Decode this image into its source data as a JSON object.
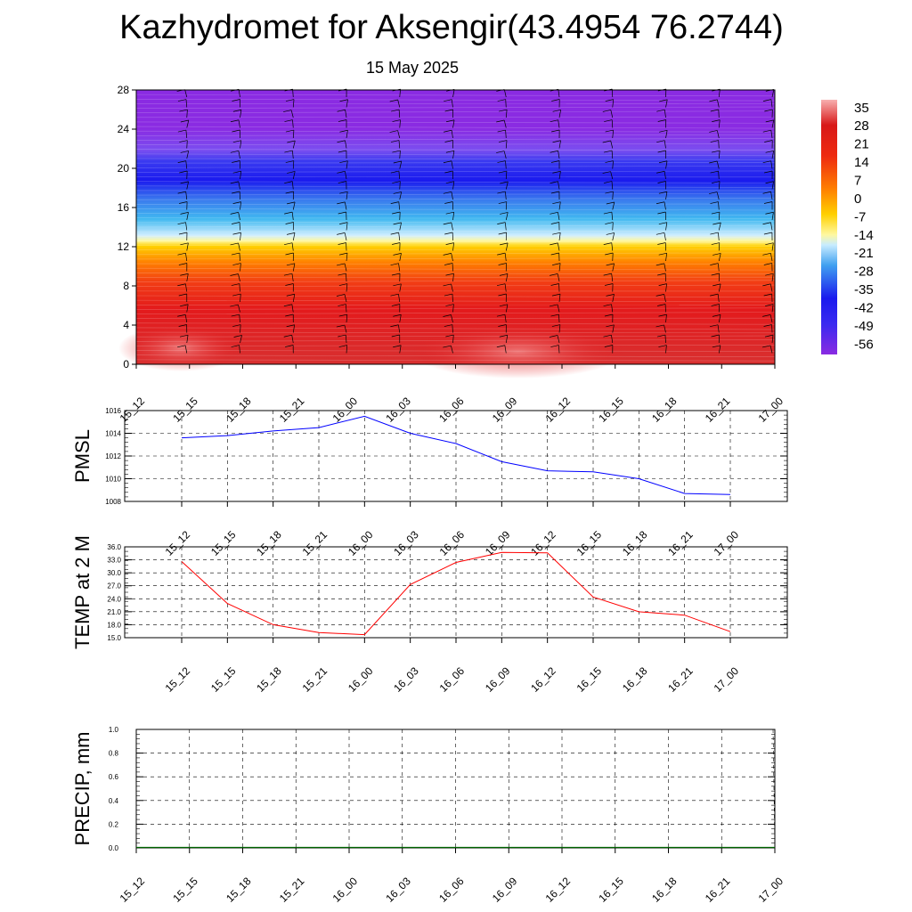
{
  "title": "Kazhydromet for Aksengir(43.4954 76.2744)",
  "subtitle": "15 May 2025",
  "time_labels": [
    "15_12",
    "15_15",
    "15_18",
    "15_21",
    "16_00",
    "16_03",
    "16_06",
    "16_09",
    "16_12",
    "16_15",
    "16_18",
    "16_21",
    "17_00"
  ],
  "chart_data": [
    {
      "type": "heatmap",
      "description": "Vertical temperature cross-section with wind barbs",
      "y_ticks": [
        "0",
        "4",
        "8",
        "12",
        "16",
        "20",
        "24",
        "28"
      ],
      "ylim": [
        0,
        28
      ],
      "colorbar_labels": [
        "35",
        "28",
        "21",
        "14",
        "7",
        "0",
        "-7",
        "-14",
        "-21",
        "-28",
        "-35",
        "-42",
        "-49",
        "-56"
      ],
      "colorbar_range": [
        -60,
        38
      ],
      "colors": {
        "hot": "#e31a1c",
        "warm": "#ff7f00",
        "yellow": "#ffd700",
        "cyan": "#40b0f0",
        "blue": "#1a1aee",
        "purple": "#8a2be2"
      }
    },
    {
      "type": "line",
      "ylabel": "PMSL",
      "y_ticks": [
        "1008",
        "1010",
        "1012",
        "1014",
        "1016"
      ],
      "ylim": [
        1008,
        1016
      ],
      "values": [
        1013.6,
        1013.8,
        1014.2,
        1014.5,
        1015.5,
        1014.0,
        1013.1,
        1011.5,
        1010.7,
        1010.6,
        1010.0,
        1008.7,
        1008.6
      ],
      "color": "#0000ff"
    },
    {
      "type": "line",
      "ylabel": "TEMP at 2 M",
      "y_ticks": [
        "15.0",
        "18.0",
        "21.0",
        "24.0",
        "27.0",
        "30.0",
        "33.0",
        "36.0"
      ],
      "ylim": [
        15,
        36
      ],
      "values": [
        32.6,
        22.9,
        18.0,
        16.2,
        15.7,
        27.3,
        32.4,
        34.7,
        34.6,
        24.4,
        21.0,
        20.2,
        16.4
      ],
      "color": "#ff0000"
    },
    {
      "type": "line",
      "ylabel": "PRECIP, mm",
      "y_ticks": [
        "0.0",
        "0.2",
        "0.4",
        "0.6",
        "0.8",
        "1.0"
      ],
      "ylim": [
        0,
        1
      ],
      "values": [
        0,
        0,
        0,
        0,
        0,
        0,
        0,
        0,
        0,
        0,
        0,
        0
      ],
      "color": "#006400"
    }
  ]
}
